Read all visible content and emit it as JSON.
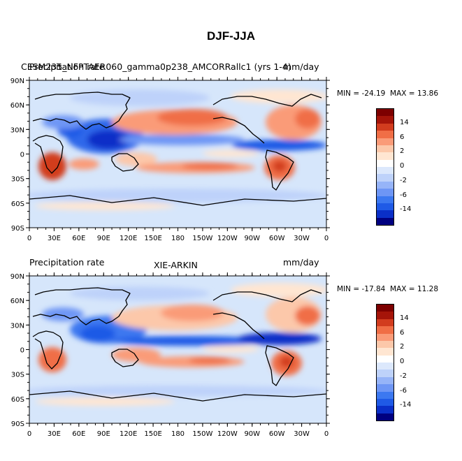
{
  "title": "DJF-JJA",
  "colorbar": {
    "colors": [
      "#000080",
      "#0a2fc8",
      "#1f5ae6",
      "#3c78f0",
      "#6e96f5",
      "#96b4f8",
      "#bed2fa",
      "#dce8fc",
      "#ffffff",
      "#ffe6d2",
      "#fcc8aa",
      "#fa9b78",
      "#f06e46",
      "#d23c1e",
      "#a51409",
      "#7d0000"
    ],
    "tick_labels": [
      "14",
      "6",
      "2",
      "0",
      "-2",
      "-6",
      "-14"
    ]
  },
  "chart_data": [
    {
      "type": "heatmap",
      "title_left": "CESM235_NFPTAER060_gamma0p238_AMCORRallc1 (yrs 1-4)",
      "title_center": "",
      "title_right": "mm/day",
      "overprint": "Precipitation rate",
      "min_label": "MIN = -24.19",
      "max_label": "MAX =  13.86",
      "x_tick_labels": [
        "0",
        "30E",
        "60E",
        "90E",
        "120E",
        "150E",
        "180",
        "150W",
        "120W",
        "90W",
        "60W",
        "30W",
        "0"
      ],
      "y_tick_labels": [
        "90N",
        "60N",
        "30N",
        "0",
        "30S",
        "60S",
        "90S"
      ],
      "xlim": [
        0,
        360
      ],
      "ylim": [
        -90,
        90
      ]
    },
    {
      "type": "heatmap",
      "title_left": "Precipitation rate",
      "title_center": "XIE-ARKIN",
      "title_right": "mm/day",
      "overprint": "",
      "min_label": "MIN = -17.84",
      "max_label": "MAX =  11.28",
      "x_tick_labels": [
        "0",
        "30E",
        "60E",
        "90E",
        "120E",
        "150E",
        "180",
        "150W",
        "120W",
        "90W",
        "60W",
        "30W",
        "0"
      ],
      "y_tick_labels": [
        "90N",
        "60N",
        "30N",
        "0",
        "30S",
        "60S",
        "90S"
      ],
      "xlim": [
        0,
        360
      ],
      "ylim": [
        -90,
        90
      ]
    }
  ]
}
